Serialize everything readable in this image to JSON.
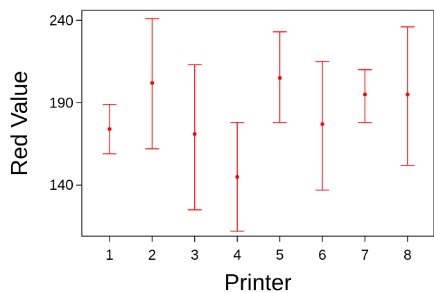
{
  "chart_data": {
    "type": "errorbar",
    "xlabel": "Printer",
    "ylabel": "Red Value",
    "categories": [
      "1",
      "2",
      "3",
      "4",
      "5",
      "6",
      "7",
      "8"
    ],
    "ylim": [
      109,
      246
    ],
    "yticks": [
      140,
      190,
      240
    ],
    "series": [
      {
        "mean": [
          174,
          202,
          171,
          145,
          205,
          177,
          195,
          195
        ],
        "lower": [
          159,
          162,
          125,
          112,
          178,
          137,
          178,
          152
        ],
        "upper": [
          189,
          241,
          213,
          178,
          233,
          215,
          210,
          236
        ]
      }
    ],
    "grid": false,
    "color": "#ff0000"
  }
}
